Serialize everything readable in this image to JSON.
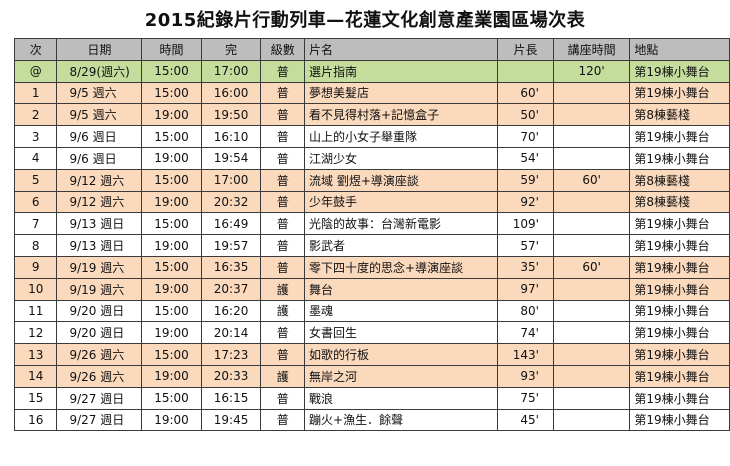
{
  "title": "2015紀錄片行動列車—花蓮文化創意產業園區場次表",
  "headers": [
    "次",
    "日期",
    "時間",
    "完",
    "級數",
    "片名",
    "片長",
    "講座時間",
    "地點"
  ],
  "rows": [
    {
      "no": "@",
      "date": "8/29(週六)",
      "start": "15:00",
      "end": "17:00",
      "level": "普",
      "name": "選片指南",
      "length": "",
      "lecture": "120'",
      "location": "第19棟小舞台",
      "color": "green"
    },
    {
      "no": "1",
      "date": "9/5  週六",
      "start": "15:00",
      "end": "16:00",
      "level": "普",
      "name": "夢想美髮店",
      "length": "60'",
      "lecture": "",
      "location": "第19棟小舞台",
      "color": "orange"
    },
    {
      "no": "2",
      "date": "9/5  週六",
      "start": "19:00",
      "end": "19:50",
      "level": "普",
      "name": "看不見得村落+記憶盒子",
      "length": "50'",
      "lecture": "",
      "location": "第8棟藝棧",
      "color": "orange"
    },
    {
      "no": "3",
      "date": "9/6  週日",
      "start": "15:00",
      "end": "16:10",
      "level": "普",
      "name": "山上的小女子舉重隊",
      "length": "70'",
      "lecture": "",
      "location": "第19棟小舞台",
      "color": "white"
    },
    {
      "no": "4",
      "date": "9/6  週日",
      "start": "19:00",
      "end": "19:54",
      "level": "普",
      "name": "江湖少女",
      "length": "54'",
      "lecture": "",
      "location": "第19棟小舞台",
      "color": "white"
    },
    {
      "no": "5",
      "date": "9/12  週六",
      "start": "15:00",
      "end": "17:00",
      "level": "普",
      "name": "流域 劉煜+導演座談",
      "length": "59'",
      "lecture": "60'",
      "location": "第8棟藝棧",
      "color": "orange"
    },
    {
      "no": "6",
      "date": "9/12  週六",
      "start": "19:00",
      "end": "20:32",
      "level": "普",
      "name": "少年鼓手",
      "length": "92'",
      "lecture": "",
      "location": "第8棟藝棧",
      "color": "orange"
    },
    {
      "no": "7",
      "date": "9/13  週日",
      "start": "15:00",
      "end": "16:49",
      "level": "普",
      "name": "光陰的故事：台灣新電影",
      "length": "109'",
      "lecture": "",
      "location": "第19棟小舞台",
      "color": "white"
    },
    {
      "no": "8",
      "date": "9/13  週日",
      "start": "19:00",
      "end": "19:57",
      "level": "普",
      "name": "影武者",
      "length": "57'",
      "lecture": "",
      "location": "第19棟小舞台",
      "color": "white"
    },
    {
      "no": "9",
      "date": "9/19  週六",
      "start": "15:00",
      "end": "16:35",
      "level": "普",
      "name": "零下四十度的思念+導演座談",
      "length": "35'",
      "lecture": "60'",
      "location": "第19棟小舞台",
      "color": "orange"
    },
    {
      "no": "10",
      "date": "9/19  週六",
      "start": "19:00",
      "end": "20:37",
      "level": "護",
      "name": "舞台",
      "length": "97'",
      "lecture": "",
      "location": "第19棟小舞台",
      "color": "orange"
    },
    {
      "no": "11",
      "date": "9/20  週日",
      "start": "15:00",
      "end": "16:20",
      "level": "護",
      "name": "墨魂",
      "length": "80'",
      "lecture": "",
      "location": "第19棟小舞台",
      "color": "white"
    },
    {
      "no": "12",
      "date": "9/20  週日",
      "start": "19:00",
      "end": "20:14",
      "level": "普",
      "name": "女書回生",
      "length": "74'",
      "lecture": "",
      "location": "第19棟小舞台",
      "color": "white"
    },
    {
      "no": "13",
      "date": "9/26  週六",
      "start": "15:00",
      "end": "17:23",
      "level": "普",
      "name": "如歌的行板",
      "length": "143'",
      "lecture": "",
      "location": "第19棟小舞台",
      "color": "orange"
    },
    {
      "no": "14",
      "date": "9/26  週六",
      "start": "19:00",
      "end": "20:33",
      "level": "護",
      "name": "無岸之河",
      "length": "93'",
      "lecture": "",
      "location": "第19棟小舞台",
      "color": "orange"
    },
    {
      "no": "15",
      "date": "9/27  週日",
      "start": "15:00",
      "end": "16:15",
      "level": "普",
      "name": "戰浪",
      "length": "75'",
      "lecture": "",
      "location": "第19棟小舞台",
      "color": "white"
    },
    {
      "no": "16",
      "date": "9/27  週日",
      "start": "19:00",
      "end": "19:45",
      "level": "普",
      "name": "蹦火+漁生．餘聲",
      "length": "45'",
      "lecture": "",
      "location": "第19棟小舞台",
      "color": "white"
    }
  ]
}
